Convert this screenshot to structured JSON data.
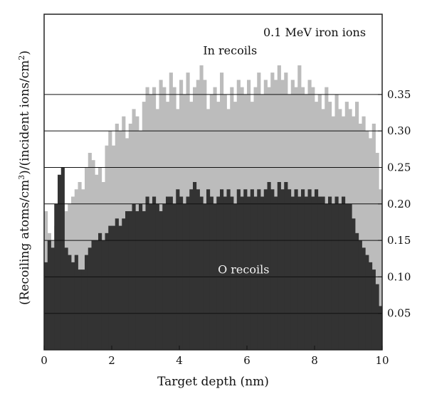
{
  "chart_data": {
    "type": "area",
    "title": "",
    "xlabel": "Target depth (nm)",
    "ylabel_parts": [
      "(Recoiling atoms/cm",
      "3",
      ")/(incident ions/cm",
      "2",
      ")"
    ],
    "xlim": [
      0,
      10
    ],
    "ylim": [
      0,
      0.46
    ],
    "x_ticks": [
      0,
      2,
      4,
      6,
      8,
      10
    ],
    "x_tick_labels": [
      "0",
      "2",
      "4",
      "6",
      "8",
      "10"
    ],
    "y_ticks": [
      0.05,
      0.1,
      0.15,
      0.2,
      0.25,
      0.3,
      0.35
    ],
    "y_tick_labels": [
      "0.05",
      "0.10",
      "0.15",
      "0.20",
      "0.25",
      "0.30",
      "0.35"
    ],
    "y_axis_side": "right",
    "grid": "horizontal",
    "annotations": [
      {
        "text": "0.1 MeV iron ions",
        "x": 8.0,
        "y": 0.43
      },
      {
        "text": "In recoils",
        "x": 5.5,
        "y": 0.405
      },
      {
        "text": "O recoils",
        "x": 5.9,
        "y": 0.105
      }
    ],
    "series": [
      {
        "name": "In recoils",
        "color": "#bcbcbc",
        "x": [
          0.0,
          0.1,
          0.2,
          0.3,
          0.4,
          0.5,
          0.6,
          0.7,
          0.8,
          0.9,
          1.0,
          1.1,
          1.2,
          1.3,
          1.4,
          1.5,
          1.6,
          1.7,
          1.8,
          1.9,
          2.0,
          2.1,
          2.2,
          2.3,
          2.4,
          2.5,
          2.6,
          2.7,
          2.8,
          2.9,
          3.0,
          3.1,
          3.2,
          3.3,
          3.4,
          3.5,
          3.6,
          3.7,
          3.8,
          3.9,
          4.0,
          4.1,
          4.2,
          4.3,
          4.4,
          4.5,
          4.6,
          4.7,
          4.8,
          4.9,
          5.0,
          5.1,
          5.2,
          5.3,
          5.4,
          5.5,
          5.6,
          5.7,
          5.8,
          5.9,
          6.0,
          6.1,
          6.2,
          6.3,
          6.4,
          6.5,
          6.6,
          6.7,
          6.8,
          6.9,
          7.0,
          7.1,
          7.2,
          7.3,
          7.4,
          7.5,
          7.6,
          7.7,
          7.8,
          7.9,
          8.0,
          8.1,
          8.2,
          8.3,
          8.4,
          8.5,
          8.6,
          8.7,
          8.8,
          8.9,
          9.0,
          9.1,
          9.2,
          9.3,
          9.4,
          9.5,
          9.6,
          9.7,
          9.8,
          9.9
        ],
        "values": [
          0.19,
          0.16,
          0.15,
          0.17,
          0.19,
          0.2,
          0.19,
          0.2,
          0.21,
          0.22,
          0.23,
          0.22,
          0.25,
          0.27,
          0.26,
          0.24,
          0.25,
          0.23,
          0.28,
          0.3,
          0.28,
          0.31,
          0.3,
          0.32,
          0.29,
          0.31,
          0.33,
          0.32,
          0.3,
          0.34,
          0.36,
          0.35,
          0.36,
          0.33,
          0.37,
          0.36,
          0.34,
          0.38,
          0.36,
          0.33,
          0.37,
          0.35,
          0.38,
          0.34,
          0.36,
          0.37,
          0.39,
          0.37,
          0.33,
          0.35,
          0.36,
          0.34,
          0.38,
          0.35,
          0.33,
          0.36,
          0.34,
          0.37,
          0.36,
          0.35,
          0.37,
          0.34,
          0.36,
          0.38,
          0.35,
          0.37,
          0.36,
          0.38,
          0.37,
          0.39,
          0.37,
          0.38,
          0.35,
          0.37,
          0.36,
          0.39,
          0.36,
          0.35,
          0.37,
          0.36,
          0.34,
          0.35,
          0.33,
          0.36,
          0.34,
          0.32,
          0.35,
          0.33,
          0.32,
          0.34,
          0.33,
          0.32,
          0.34,
          0.31,
          0.32,
          0.3,
          0.29,
          0.31,
          0.27,
          0.22
        ]
      },
      {
        "name": "O recoils",
        "color": "#333333",
        "x": [
          0.0,
          0.1,
          0.2,
          0.3,
          0.4,
          0.5,
          0.6,
          0.7,
          0.8,
          0.9,
          1.0,
          1.1,
          1.2,
          1.3,
          1.4,
          1.5,
          1.6,
          1.7,
          1.8,
          1.9,
          2.0,
          2.1,
          2.2,
          2.3,
          2.4,
          2.5,
          2.6,
          2.7,
          2.8,
          2.9,
          3.0,
          3.1,
          3.2,
          3.3,
          3.4,
          3.5,
          3.6,
          3.7,
          3.8,
          3.9,
          4.0,
          4.1,
          4.2,
          4.3,
          4.4,
          4.5,
          4.6,
          4.7,
          4.8,
          4.9,
          5.0,
          5.1,
          5.2,
          5.3,
          5.4,
          5.5,
          5.6,
          5.7,
          5.8,
          5.9,
          6.0,
          6.1,
          6.2,
          6.3,
          6.4,
          6.5,
          6.6,
          6.7,
          6.8,
          6.9,
          7.0,
          7.1,
          7.2,
          7.3,
          7.4,
          7.5,
          7.6,
          7.7,
          7.8,
          7.9,
          8.0,
          8.1,
          8.2,
          8.3,
          8.4,
          8.5,
          8.6,
          8.7,
          8.8,
          8.9,
          9.0,
          9.1,
          9.2,
          9.3,
          9.4,
          9.5,
          9.6,
          9.7,
          9.8,
          9.9
        ],
        "values": [
          0.12,
          0.15,
          0.14,
          0.2,
          0.24,
          0.25,
          0.14,
          0.13,
          0.12,
          0.13,
          0.11,
          0.11,
          0.13,
          0.14,
          0.15,
          0.15,
          0.16,
          0.15,
          0.16,
          0.17,
          0.17,
          0.18,
          0.17,
          0.18,
          0.19,
          0.19,
          0.2,
          0.19,
          0.2,
          0.19,
          0.21,
          0.2,
          0.21,
          0.2,
          0.19,
          0.2,
          0.21,
          0.21,
          0.2,
          0.22,
          0.21,
          0.2,
          0.21,
          0.22,
          0.23,
          0.22,
          0.21,
          0.2,
          0.22,
          0.21,
          0.2,
          0.21,
          0.22,
          0.21,
          0.22,
          0.21,
          0.2,
          0.22,
          0.21,
          0.22,
          0.21,
          0.22,
          0.21,
          0.22,
          0.21,
          0.22,
          0.23,
          0.22,
          0.21,
          0.23,
          0.22,
          0.23,
          0.22,
          0.21,
          0.22,
          0.21,
          0.22,
          0.21,
          0.22,
          0.21,
          0.22,
          0.21,
          0.21,
          0.2,
          0.21,
          0.2,
          0.21,
          0.2,
          0.21,
          0.2,
          0.2,
          0.18,
          0.16,
          0.15,
          0.14,
          0.13,
          0.12,
          0.11,
          0.09,
          0.06
        ]
      }
    ]
  }
}
